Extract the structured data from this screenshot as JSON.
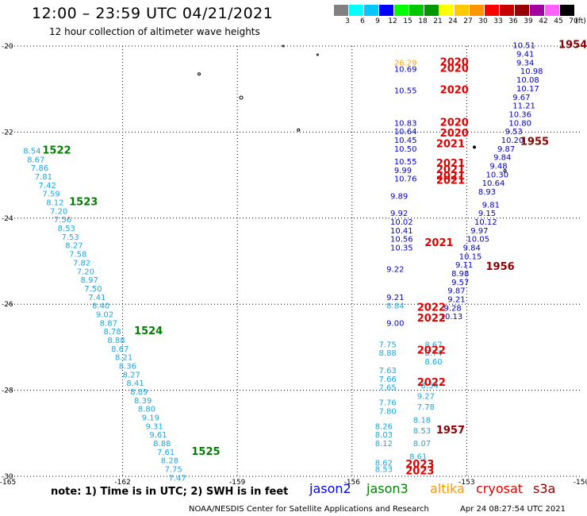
{
  "header": {
    "title": "12:00 – 23:59 UTC 04/21/2021",
    "subtitle": "12 hour collection of altimeter wave heights"
  },
  "legend": {
    "unit": "(ft)",
    "items": [
      {
        "label": "3",
        "color": "#808080"
      },
      {
        "label": "6",
        "color": "#00ffff"
      },
      {
        "label": "9",
        "color": "#00c8ff"
      },
      {
        "label": "12",
        "color": "#0000ff"
      },
      {
        "label": "15",
        "color": "#00ff00"
      },
      {
        "label": "18",
        "color": "#00c800"
      },
      {
        "label": "21",
        "color": "#009600"
      },
      {
        "label": "24",
        "color": "#ffff00"
      },
      {
        "label": "27",
        "color": "#ffc800"
      },
      {
        "label": "30",
        "color": "#ff9600"
      },
      {
        "label": "33",
        "color": "#ff0000"
      },
      {
        "label": "36",
        "color": "#c80000"
      },
      {
        "label": "39",
        "color": "#960000"
      },
      {
        "label": "42",
        "color": "#a000a0"
      },
      {
        "label": "45",
        "color": "#ff60ff"
      },
      {
        "label": "70",
        "color": "#000000"
      }
    ]
  },
  "axes": {
    "lon_ticks": [
      "-165",
      "-162",
      "-159",
      "-156",
      "-153",
      "-150"
    ],
    "lat_ticks": [
      "-20",
      "-22",
      "-24",
      "-26",
      "-28",
      "-30"
    ]
  },
  "passes": [
    {
      "id": "west-track",
      "color": "#1aa8e0",
      "labels": [
        {
          "text": "8.54",
          "lat": -22.5,
          "lon": -164.6
        },
        {
          "text": "8.67",
          "lat": -22.7,
          "lon": -164.5
        },
        {
          "text": "7.86",
          "lat": -22.9,
          "lon": -164.4
        },
        {
          "text": "7.81",
          "lat": -23.1,
          "lon": -164.3
        },
        {
          "text": "7.42",
          "lat": -23.3,
          "lon": -164.2
        },
        {
          "text": "7.59",
          "lat": -23.5,
          "lon": -164.1
        },
        {
          "text": "8.12",
          "lat": -23.7,
          "lon": -164.0
        },
        {
          "text": "7.20",
          "lat": -23.9,
          "lon": -163.9
        },
        {
          "text": "7.56",
          "lat": -24.1,
          "lon": -163.8
        },
        {
          "text": "8.53",
          "lat": -24.3,
          "lon": -163.7
        },
        {
          "text": "7.53",
          "lat": -24.5,
          "lon": -163.6
        },
        {
          "text": "8.27",
          "lat": -24.7,
          "lon": -163.5
        },
        {
          "text": "7.58",
          "lat": -24.9,
          "lon": -163.4
        },
        {
          "text": "7.82",
          "lat": -25.1,
          "lon": -163.3
        },
        {
          "text": "7.20",
          "lat": -25.3,
          "lon": -163.2
        },
        {
          "text": "8.97",
          "lat": -25.5,
          "lon": -163.1
        },
        {
          "text": "7.50",
          "lat": -25.7,
          "lon": -163.0
        },
        {
          "text": "7.41",
          "lat": -25.9,
          "lon": -162.9
        },
        {
          "text": "8.40",
          "lat": -26.1,
          "lon": -162.8
        },
        {
          "text": "9.02",
          "lat": -26.3,
          "lon": -162.7
        },
        {
          "text": "8.87",
          "lat": -26.5,
          "lon": -162.6
        },
        {
          "text": "8.78",
          "lat": -26.7,
          "lon": -162.5
        },
        {
          "text": "8.88",
          "lat": -26.9,
          "lon": -162.4
        },
        {
          "text": "8.67",
          "lat": -27.1,
          "lon": -162.3
        },
        {
          "text": "8.21",
          "lat": -27.3,
          "lon": -162.2
        },
        {
          "text": "8.36",
          "lat": -27.5,
          "lon": -162.1
        },
        {
          "text": "8.27",
          "lat": -27.7,
          "lon": -162.0
        },
        {
          "text": "8.41",
          "lat": -27.9,
          "lon": -161.9
        },
        {
          "text": "8.89",
          "lat": -28.1,
          "lon": -161.8
        },
        {
          "text": "8.39",
          "lat": -28.3,
          "lon": -161.7
        },
        {
          "text": "8.80",
          "lat": -28.5,
          "lon": -161.6
        },
        {
          "text": "9.19",
          "lat": -28.7,
          "lon": -161.5
        },
        {
          "text": "9.31",
          "lat": -28.9,
          "lon": -161.4
        },
        {
          "text": "9.61",
          "lat": -29.1,
          "lon": -161.3
        },
        {
          "text": "8.88",
          "lat": -29.3,
          "lon": -161.2
        },
        {
          "text": "7.61",
          "lat": -29.5,
          "lon": -161.1
        },
        {
          "text": "8.28",
          "lat": -29.7,
          "lon": -161.0
        },
        {
          "text": "7.75",
          "lat": -29.9,
          "lon": -160.9
        },
        {
          "text": "7.47",
          "lat": -30.1,
          "lon": -160.8
        }
      ]
    },
    {
      "id": "east-track-a",
      "color": "#0000c8",
      "labels": [
        {
          "text": "10.51",
          "lat": -20.05,
          "lon": -151.8
        },
        {
          "text": "9.41",
          "lat": -20.25,
          "lon": -151.7
        },
        {
          "text": "9.34",
          "lat": -20.45,
          "lon": -151.7
        },
        {
          "text": "10.98",
          "lat": -20.65,
          "lon": -151.6
        },
        {
          "text": "10.08",
          "lat": -20.85,
          "lon": -151.7
        },
        {
          "text": "10.17",
          "lat": -21.05,
          "lon": -151.7
        },
        {
          "text": "9.67",
          "lat": -21.25,
          "lon": -151.8
        },
        {
          "text": "11.21",
          "lat": -21.45,
          "lon": -151.8
        },
        {
          "text": "10.36",
          "lat": -21.65,
          "lon": -151.9
        },
        {
          "text": "10.80",
          "lat": -21.85,
          "lon": -151.9
        },
        {
          "text": "9.53",
          "lat": -22.05,
          "lon": -152.0
        },
        {
          "text": "10.20",
          "lat": -22.25,
          "lon": -152.1
        },
        {
          "text": "9.87",
          "lat": -22.45,
          "lon": -152.2
        },
        {
          "text": "9.84",
          "lat": -22.65,
          "lon": -152.3
        },
        {
          "text": "9.48",
          "lat": -22.85,
          "lon": -152.4
        },
        {
          "text": "10.30",
          "lat": -23.05,
          "lon": -152.5
        },
        {
          "text": "10.64",
          "lat": -23.25,
          "lon": -152.6
        },
        {
          "text": "8.93",
          "lat": -23.45,
          "lon": -152.7
        },
        {
          "text": "9.81",
          "lat": -23.75,
          "lon": -152.6
        },
        {
          "text": "9.15",
          "lat": -23.95,
          "lon": -152.7
        },
        {
          "text": "10.12",
          "lat": -24.15,
          "lon": -152.8
        },
        {
          "text": "9.97",
          "lat": -24.35,
          "lon": -152.9
        },
        {
          "text": "10.05",
          "lat": -24.55,
          "lon": -153.0
        },
        {
          "text": "9.84",
          "lat": -24.75,
          "lon": -153.1
        },
        {
          "text": "10.15",
          "lat": -24.95,
          "lon": -153.2
        },
        {
          "text": "9.11",
          "lat": -25.15,
          "lon": -153.3
        },
        {
          "text": "8.98",
          "lat": -25.35,
          "lon": -153.4
        },
        {
          "text": "9.57",
          "lat": -25.55,
          "lon": -153.4
        },
        {
          "text": "9.87",
          "lat": -25.75,
          "lon": -153.5
        },
        {
          "text": "9.21",
          "lat": -25.95,
          "lon": -153.5
        },
        {
          "text": "9.28",
          "lat": -26.15,
          "lon": -153.6
        },
        {
          "text": "10.13",
          "lat": -26.35,
          "lon": -153.7
        }
      ]
    },
    {
      "id": "east-track-b",
      "color": "#0000c8",
      "labels": [
        {
          "text": "10.69",
          "lat": -20.6,
          "lon": -154.9
        },
        {
          "text": "10.55",
          "lat": -21.1,
          "lon": -154.9
        },
        {
          "text": "10.83",
          "lat": -21.85,
          "lon": -154.9
        },
        {
          "text": "10.64",
          "lat": -22.05,
          "lon": -154.9
        },
        {
          "text": "10.45",
          "lat": -22.25,
          "lon": -154.9
        },
        {
          "text": "10.50",
          "lat": -22.45,
          "lon": -154.9
        },
        {
          "text": "10.55",
          "lat": -22.75,
          "lon": -154.9
        },
        {
          "text": "9.99",
          "lat": -22.95,
          "lon": -154.9
        },
        {
          "text": "10.76",
          "lat": -23.15,
          "lon": -154.9
        },
        {
          "text": "9.89",
          "lat": -23.55,
          "lon": -155.0
        },
        {
          "text": "9.92",
          "lat": -23.95,
          "lon": -155.0
        },
        {
          "text": "10.02",
          "lat": -24.15,
          "lon": -155.0
        },
        {
          "text": "10.41",
          "lat": -24.35,
          "lon": -155.0
        },
        {
          "text": "10.56",
          "lat": -24.55,
          "lon": -155.0
        },
        {
          "text": "10.35",
          "lat": -24.75,
          "lon": -155.0
        },
        {
          "text": "9.22",
          "lat": -25.25,
          "lon": -155.1
        },
        {
          "text": "9.21",
          "lat": -25.9,
          "lon": -155.1
        },
        {
          "text": "9.00",
          "lat": -26.5,
          "lon": -155.1
        }
      ]
    },
    {
      "id": "east-track-c",
      "color": "#1aa8e0",
      "labels": [
        {
          "text": "8.84",
          "lat": -26.1,
          "lon": -155.1
        },
        {
          "text": "7.75",
          "lat": -27.0,
          "lon": -155.3
        },
        {
          "text": "8.88",
          "lat": -27.2,
          "lon": -155.3
        },
        {
          "text": "7.63",
          "lat": -27.6,
          "lon": -155.3
        },
        {
          "text": "7.66",
          "lat": -27.8,
          "lon": -155.3
        },
        {
          "text": "7.65",
          "lat": -28.0,
          "lon": -155.3
        },
        {
          "text": "7.76",
          "lat": -28.35,
          "lon": -155.3
        },
        {
          "text": "7.80",
          "lat": -28.55,
          "lon": -155.3
        },
        {
          "text": "8.26",
          "lat": -28.9,
          "lon": -155.4
        },
        {
          "text": "8.03",
          "lat": -29.1,
          "lon": -155.4
        },
        {
          "text": "8.12",
          "lat": -29.3,
          "lon": -155.4
        },
        {
          "text": "8.62",
          "lat": -29.75,
          "lon": -155.4
        },
        {
          "text": "8.53",
          "lat": -29.9,
          "lon": -155.4
        },
        {
          "text": "8.67",
          "lat": -27.0,
          "lon": -154.1
        },
        {
          "text": "8.74",
          "lat": -27.2,
          "lon": -154.1
        },
        {
          "text": "8.60",
          "lat": -27.4,
          "lon": -154.1
        },
        {
          "text": "8.54",
          "lat": -27.95,
          "lon": -154.2
        },
        {
          "text": "9.27",
          "lat": -28.2,
          "lon": -154.3
        },
        {
          "text": "7.78",
          "lat": -28.45,
          "lon": -154.3
        },
        {
          "text": "8.18",
          "lat": -28.75,
          "lon": -154.4
        },
        {
          "text": "8.53",
          "lat": -29.0,
          "lon": -154.4
        },
        {
          "text": "8.07",
          "lat": -29.3,
          "lon": -154.4
        },
        {
          "text": "8.61",
          "lat": -29.6,
          "lon": -154.5
        }
      ]
    },
    {
      "id": "east-track-orange",
      "color": "#ffa800",
      "labels": [
        {
          "text": "26.29",
          "lat": -20.45,
          "lon": -154.9
        }
      ]
    }
  ],
  "pass_labels": [
    {
      "text": "1954",
      "lat": -20.05,
      "lon": -150.6,
      "color": "#8b0000"
    },
    {
      "text": "2020",
      "lat": -20.45,
      "lon": -153.7,
      "color": "#e00000"
    },
    {
      "text": "2020",
      "lat": -20.6,
      "lon": -153.7,
      "color": "#e00000"
    },
    {
      "text": "2020",
      "lat": -21.1,
      "lon": -153.7,
      "color": "#e00000"
    },
    {
      "text": "2020",
      "lat": -21.85,
      "lon": -153.7,
      "color": "#e00000"
    },
    {
      "text": "2020",
      "lat": -22.1,
      "lon": -153.7,
      "color": "#e00000"
    },
    {
      "text": "2021",
      "lat": -22.35,
      "lon": -153.8,
      "color": "#e00000"
    },
    {
      "text": "2021",
      "lat": -22.8,
      "lon": -153.8,
      "color": "#e00000"
    },
    {
      "text": "2021",
      "lat": -22.95,
      "lon": -153.8,
      "color": "#e00000"
    },
    {
      "text": "2021",
      "lat": -23.1,
      "lon": -153.8,
      "color": "#e00000"
    },
    {
      "text": "2021",
      "lat": -23.2,
      "lon": -153.8,
      "color": "#e00000"
    },
    {
      "text": "2021",
      "lat": -24.65,
      "lon": -154.1,
      "color": "#e00000"
    },
    {
      "text": "2022",
      "lat": -26.15,
      "lon": -154.3,
      "color": "#e00000"
    },
    {
      "text": "2022",
      "lat": -26.4,
      "lon": -154.3,
      "color": "#e00000"
    },
    {
      "text": "2022",
      "lat": -27.15,
      "lon": -154.3,
      "color": "#e00000"
    },
    {
      "text": "2022",
      "lat": -27.9,
      "lon": -154.3,
      "color": "#e00000"
    },
    {
      "text": "2023",
      "lat": -29.8,
      "lon": -154.6,
      "color": "#e00000"
    },
    {
      "text": "2023",
      "lat": -29.95,
      "lon": -154.6,
      "color": "#e00000"
    },
    {
      "text": "1955",
      "lat": -22.3,
      "lon": -151.6,
      "color": "#8b0000"
    },
    {
      "text": "1956",
      "lat": -25.2,
      "lon": -152.5,
      "color": "#8b0000"
    },
    {
      "text": "1957",
      "lat": -29.0,
      "lon": -153.8,
      "color": "#8b0000"
    },
    {
      "text": "1522",
      "lat": -22.5,
      "lon": -164.1,
      "color": "#008000"
    },
    {
      "text": "1523",
      "lat": -23.7,
      "lon": -163.4,
      "color": "#008000"
    },
    {
      "text": "1524",
      "lat": -26.7,
      "lon": -161.7,
      "color": "#008000"
    },
    {
      "text": "1525",
      "lat": -29.5,
      "lon": -160.2,
      "color": "#008000"
    }
  ],
  "footer": {
    "note": "note:  1) Time is in UTC;  2) SWH is in feet",
    "satellites": [
      {
        "name": "jason2",
        "color": "#0000ff"
      },
      {
        "name": "jason3",
        "color": "#008000"
      },
      {
        "name": "altika",
        "color": "#ff9600"
      },
      {
        "name": "cryosat",
        "color": "#e00000"
      },
      {
        "name": "s3a",
        "color": "#8b0000"
      }
    ],
    "credit": "NOAA/NESDIS Center for Satellite Applications and Research",
    "timestamp": "Apr 24 08:27:54 UTC 2021"
  }
}
